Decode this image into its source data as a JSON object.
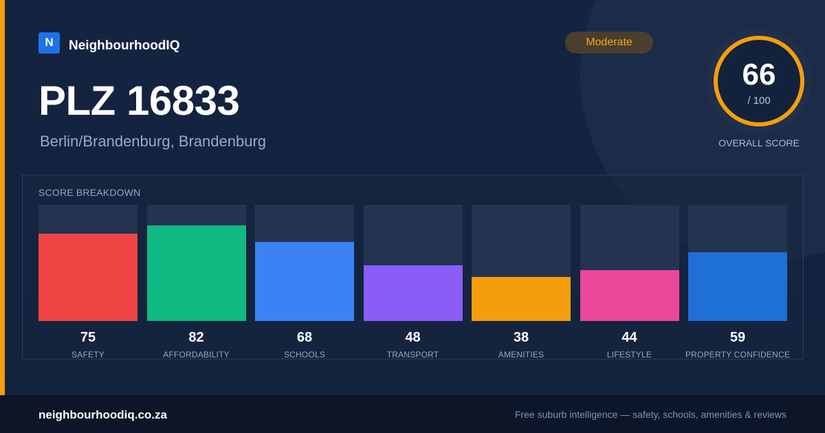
{
  "brand": {
    "logo_letter": "N",
    "name": "NeighbourhoodIQ"
  },
  "location": {
    "title": "PLZ 16833",
    "subtitle": "Berlin/Brandenburg, Brandenburg"
  },
  "rating_badge": {
    "label": "Moderate",
    "color": "#f5a524"
  },
  "overall_score": {
    "value": "66",
    "max_label": "/ 100",
    "caption": "OVERALL SCORE",
    "ring_color": "#f59e0b"
  },
  "breakdown": {
    "title": "SCORE BREAKDOWN",
    "items": [
      {
        "label": "SAFETY",
        "value": 75,
        "color": "#ef4444"
      },
      {
        "label": "AFFORDABILITY",
        "value": 82,
        "color": "#10b981"
      },
      {
        "label": "SCHOOLS",
        "value": 68,
        "color": "#3b82f6"
      },
      {
        "label": "TRANSPORT",
        "value": 48,
        "color": "#8b5cf6"
      },
      {
        "label": "AMENITIES",
        "value": 38,
        "color": "#f59e0b"
      },
      {
        "label": "LIFESTYLE",
        "value": 44,
        "color": "#ec4899"
      },
      {
        "label": "PROPERTY CONFIDENCE",
        "value": 59,
        "color": "#1f6fd8"
      }
    ]
  },
  "footer": {
    "domain": "neighbourhoodiq.co.za",
    "tagline": "Free suburb intelligence — safety, schools, amenities & reviews"
  }
}
